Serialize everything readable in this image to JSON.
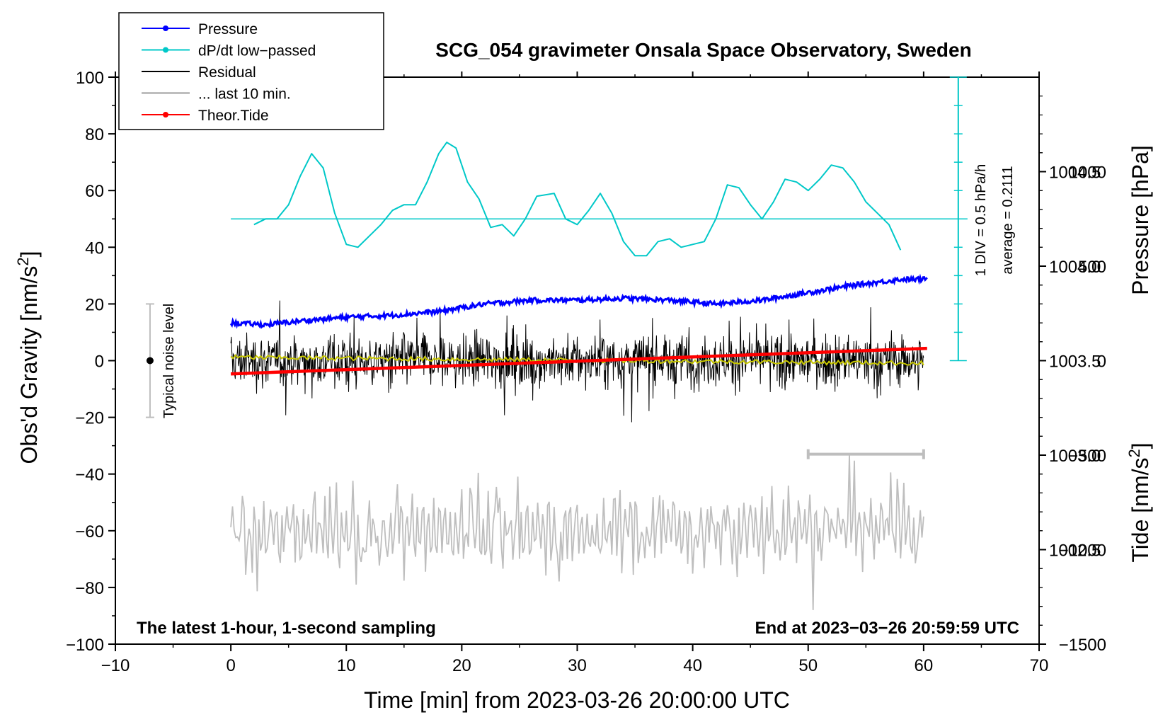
{
  "chart_data": {
    "type": "line",
    "title": "SCG_054 gravimeter Onsala Space Observatory, Sweden",
    "xlabel": "Time [min] from 2023-03-26 20:00:00 UTC",
    "ylabel_left_main": "Obs'd Gravity [nm/s",
    "ylabel_left_sup": "2",
    "ylabel_left_end": "]",
    "ylabel_right_pressure": "Pressure [hPa]",
    "ylabel_right_tide_main": "Tide [nm/s",
    "ylabel_right_tide_sup": "2",
    "ylabel_right_tide_end": "]",
    "xlim": [
      -10,
      70
    ],
    "ylim": [
      -100,
      100
    ],
    "x_ticks": [
      "−10",
      "0",
      "10",
      "20",
      "30",
      "40",
      "50",
      "60",
      "70"
    ],
    "x_tick_values": [
      -10,
      0,
      10,
      20,
      30,
      40,
      50,
      60,
      70
    ],
    "y_ticks": [
      "−100",
      "−80",
      "−60",
      "−40",
      "−20",
      "0",
      "20",
      "40",
      "60",
      "80",
      "100"
    ],
    "y_tick_values": [
      -100,
      -80,
      -60,
      -40,
      -20,
      0,
      20,
      40,
      60,
      80,
      100
    ],
    "pressure_ticks": [
      "1002.5",
      "1003.0",
      "1003.5",
      "1004.0",
      "1004.5"
    ],
    "pressure_tick_values": [
      1002.5,
      1003.0,
      1003.5,
      1004.0,
      1004.5
    ],
    "pressure_range": [
      1002.0,
      1005.0
    ],
    "tide_ticks": [
      "−1500",
      "−1000",
      "−500",
      "0",
      "500",
      "1000"
    ],
    "tide_tick_values": [
      -1500,
      -1000,
      -500,
      0,
      500,
      1000
    ],
    "tide_range": [
      -1500,
      1500
    ],
    "legend": [
      {
        "label": "Pressure",
        "color": "#0000ff",
        "marker": true
      },
      {
        "label": "dP/dt low−passed",
        "color": "#00c8c8",
        "marker": true
      },
      {
        "label": "Residual",
        "color": "#000000",
        "marker": false
      },
      {
        "label": "... last 10 min.",
        "color": "#bebebe",
        "marker": false
      },
      {
        "label": "Theor.Tide",
        "color": "#ff0000",
        "marker": true
      }
    ],
    "noise_label": "Typical noise level",
    "noise_range": [
      -20,
      20
    ],
    "dpdt_scale_label": "1 DIV = 0.5 hPa/h",
    "dpdt_average_label": "average = 0.2111",
    "dpdt_baseline": 50,
    "bottom_left_note": "The latest 1-hour, 1-second sampling",
    "bottom_right_note": "End at 2023−03−26 20:59:59 UTC",
    "last10_window": [
      50,
      60
    ],
    "series": [
      {
        "name": "Pressure",
        "unit": "hPa",
        "x": [
          0,
          3,
          6,
          10,
          14,
          18,
          22,
          26,
          30,
          34,
          38,
          42,
          46,
          50,
          54,
          58,
          60.3
        ],
        "values": [
          1003.7,
          1003.69,
          1003.71,
          1003.73,
          1003.74,
          1003.76,
          1003.8,
          1003.82,
          1003.82,
          1003.83,
          1003.82,
          1003.8,
          1003.82,
          1003.86,
          1003.9,
          1003.93,
          1003.93
        ]
      },
      {
        "name": "dP/dt low-passed",
        "unit": "nm/s2 (plot units)",
        "x": [
          2,
          3,
          4,
          5,
          6,
          7,
          8,
          9,
          10,
          11,
          12,
          13,
          14,
          15,
          16,
          17,
          18,
          18.7,
          19.5,
          20.5,
          21.5,
          22.5,
          23.5,
          24.5,
          25.5,
          26.5,
          28,
          29,
          30,
          31,
          32,
          33,
          34,
          35,
          36,
          37,
          38,
          39,
          40,
          41,
          42,
          43,
          44,
          45,
          46,
          47,
          48,
          49,
          50,
          51,
          52,
          53,
          54,
          55,
          56,
          57,
          58
        ],
        "values": [
          48,
          50,
          50,
          55,
          65,
          73,
          68,
          52,
          41,
          40,
          44,
          48,
          53,
          55,
          55,
          63,
          73,
          77,
          75,
          63,
          57,
          47,
          48,
          44,
          50,
          58,
          59,
          50,
          48,
          53,
          59,
          52,
          42,
          37,
          37,
          42,
          43,
          40,
          41,
          42,
          50,
          62,
          61,
          55,
          50,
          56,
          64,
          63,
          60,
          64,
          69,
          68,
          63,
          56,
          52,
          48,
          39
        ]
      },
      {
        "name": "Residual",
        "unit": "nm/s2",
        "x": [
          0,
          60
        ],
        "values": [
          0,
          0
        ],
        "noise_amplitude": 20
      },
      {
        "name": "... last 10 min.",
        "unit": "nm/s2 (plot units)",
        "x": [
          0,
          60
        ],
        "values": [
          -60,
          -60
        ],
        "noise_amplitude": 20
      },
      {
        "name": "Theor.Tide",
        "unit": "nm/s2",
        "x": [
          0,
          60.3
        ],
        "values": [
          -70,
          65
        ]
      }
    ]
  }
}
